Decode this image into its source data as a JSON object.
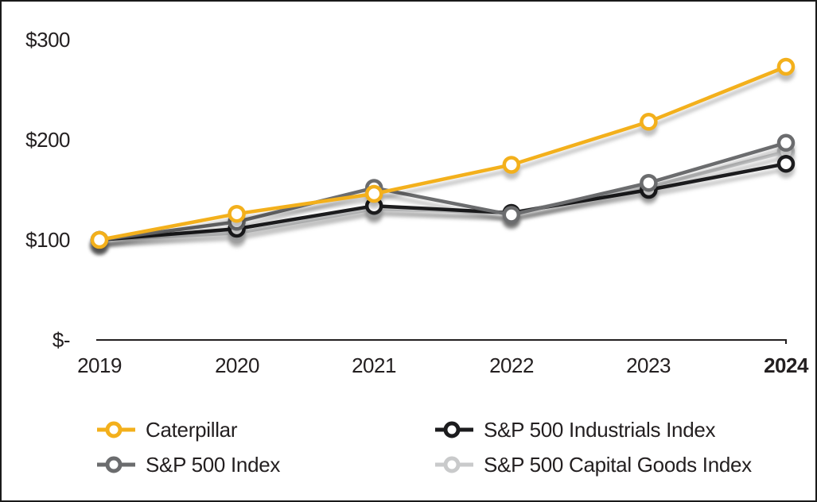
{
  "chart_data": {
    "type": "line",
    "title": "",
    "xlabel": "",
    "ylabel": "",
    "x_labels": [
      "2019",
      "2020",
      "2021",
      "2022",
      "2023",
      "2024"
    ],
    "y_ticks": [
      {
        "label": "$300",
        "value": 300
      },
      {
        "label": "$200",
        "value": 200
      },
      {
        "label": "$100",
        "value": 100
      },
      {
        "label": "$-",
        "value": 0
      }
    ],
    "ylim": [
      0,
      300
    ],
    "grid": false,
    "legend_position": "bottom",
    "marker": "open-circle",
    "axis_color": "#231f20",
    "series": [
      {
        "name": "Caterpillar",
        "color": "#F3B01C",
        "values": [
          100,
          126,
          146,
          175,
          218,
          273
        ]
      },
      {
        "name": "S&P 500 Index",
        "color": "#6B6C6E",
        "values": [
          100,
          118,
          152,
          125,
          157,
          197
        ]
      },
      {
        "name": "S&P 500 Industrials Index",
        "color": "#1C1C1E",
        "values": [
          100,
          111,
          134,
          127,
          150,
          176
        ]
      },
      {
        "name": "S&P 500 Capital Goods Index",
        "color": "#C9CACB",
        "values": [
          100,
          107,
          131,
          127,
          153,
          188
        ]
      }
    ]
  },
  "legend": {
    "items": [
      {
        "label": "Caterpillar",
        "series_index": 0
      },
      {
        "label": "S&P 500 Industrials Index",
        "series_index": 2
      },
      {
        "label": "S&P 500 Index",
        "series_index": 1
      },
      {
        "label": "S&P 500 Capital Goods Index",
        "series_index": 3
      }
    ]
  }
}
